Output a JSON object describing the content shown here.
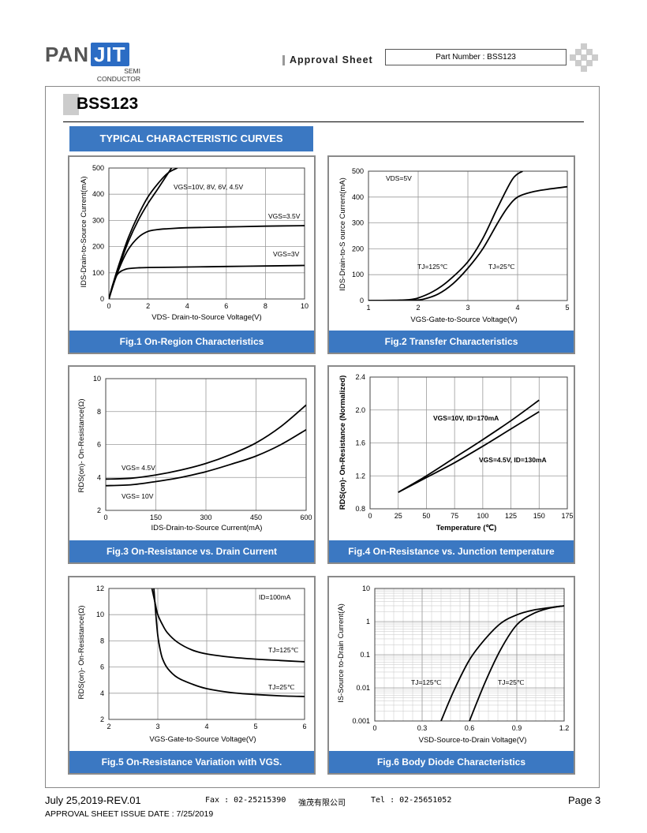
{
  "header": {
    "logo_main": "PAN",
    "logo_accent": "JIT",
    "logo_sub1": "SEMI",
    "logo_sub2": "CONDUCTOR",
    "approval_label": "Approval   Sheet",
    "part_number": "Part Number : BSS123"
  },
  "page_title": "BSS123",
  "section_title": "TYPICAL CHARACTERISTIC CURVES",
  "charts": [
    {
      "caption": "Fig.1 On-Region Characteristics",
      "chart_data": {
        "type": "line",
        "xlabel": "VDS- Drain-to-Source Voltage(V)",
        "ylabel": "IDS-Drain-to-Source Current(mA)",
        "xlim": [
          0,
          10
        ],
        "ylim": [
          0,
          500
        ],
        "x_ticks": [
          "0",
          "2",
          "4",
          "6",
          "8",
          "10"
        ],
        "y_ticks": [
          "0",
          "100",
          "200",
          "300",
          "400",
          "500"
        ],
        "annotations": [
          "VGS=10V, 8V, 6V, 4.5V",
          "VGS=3.5V",
          "VGS=3V"
        ],
        "series": [
          {
            "x": [
              0,
              0.3,
              0.6,
              1,
              1.5,
              2,
              2.5,
              3,
              3.5
            ],
            "y": [
              0,
              80,
              150,
              235,
              320,
              390,
              440,
              480,
              500
            ]
          },
          {
            "x": [
              0,
              0.3,
              0.6,
              1,
              1.5,
              2,
              2.5,
              3.2
            ],
            "y": [
              0,
              75,
              140,
              220,
              300,
              365,
              420,
              500
            ]
          },
          {
            "x": [
              0,
              0.3,
              0.6,
              1,
              1.5,
              2,
              2.5,
              3,
              4,
              6,
              8,
              10
            ],
            "y": [
              0,
              70,
              130,
              190,
              235,
              258,
              265,
              268,
              272,
              275,
              278,
              280
            ]
          },
          {
            "x": [
              0,
              0.2,
              0.4,
              0.6,
              0.8,
              1,
              1.5,
              2,
              4,
              6,
              8,
              10
            ],
            "y": [
              0,
              55,
              90,
              105,
              112,
              116,
              119,
              120,
              122,
              124,
              126,
              128
            ]
          }
        ]
      }
    },
    {
      "caption": "Fig.2 Transfer Characteristics",
      "chart_data": {
        "type": "line",
        "xlabel": "VGS-Gate-to-Source Voltage(V)",
        "ylabel": "IDS-Drain-to-S ource Current(mA)",
        "xlim": [
          1,
          5
        ],
        "ylim": [
          0,
          500
        ],
        "x_ticks": [
          "1",
          "2",
          "3",
          "4",
          "5"
        ],
        "y_ticks": [
          "0",
          "100",
          "200",
          "300",
          "400",
          "500"
        ],
        "annotations": [
          "VDS=5V",
          "TJ=125℃",
          "TJ=25℃"
        ],
        "series": [
          {
            "name": "TJ=125℃",
            "x": [
              1,
              1.5,
              1.8,
              2,
              2.3,
              2.6,
              3,
              3.3,
              3.6,
              3.9,
              4.1
            ],
            "y": [
              0,
              1,
              3,
              10,
              35,
              75,
              150,
              240,
              360,
              470,
              500
            ]
          },
          {
            "name": "TJ=25℃",
            "x": [
              1,
              1.5,
              1.9,
              2.1,
              2.4,
              2.7,
              3,
              3.3,
              3.6,
              3.8,
              4.0,
              4.3,
              4.6,
              5
            ],
            "y": [
              0,
              0,
              1,
              5,
              25,
              65,
              125,
              200,
              300,
              360,
              400,
              420,
              430,
              440
            ]
          }
        ]
      }
    },
    {
      "caption": "Fig.3 On-Resistance vs. Drain Current",
      "chart_data": {
        "type": "line",
        "xlabel": "IDS-Drain-to-Source Current(mA)",
        "ylabel": "RDS(on)- On-Resistance(Ω)",
        "xlim": [
          0,
          600
        ],
        "ylim": [
          2,
          10
        ],
        "x_ticks": [
          "0",
          "150",
          "300",
          "450",
          "600"
        ],
        "y_ticks": [
          "2",
          "4",
          "6",
          "8",
          "10"
        ],
        "annotations": [
          "VGS= 4.5V",
          "VGS= 10V"
        ],
        "series": [
          {
            "name": "VGS= 4.5V",
            "x": [
              0,
              75,
              150,
              225,
              300,
              375,
              450,
              525,
              600
            ],
            "y": [
              3.9,
              3.95,
              4.15,
              4.45,
              4.85,
              5.4,
              6.1,
              7.1,
              8.4
            ]
          },
          {
            "name": "VGS= 10V",
            "x": [
              0,
              75,
              150,
              225,
              300,
              375,
              450,
              525,
              600
            ],
            "y": [
              3.5,
              3.55,
              3.75,
              4.0,
              4.35,
              4.8,
              5.3,
              6.0,
              6.9
            ]
          }
        ]
      }
    },
    {
      "caption": "Fig.4 On-Resistance vs. Junction temperature",
      "chart_data": {
        "type": "line",
        "xlabel": "Temperature (℃)",
        "ylabel": "RDS(on)- On-Resistance (Normalized)",
        "xlim": [
          0,
          175
        ],
        "ylim": [
          0.8,
          2.4
        ],
        "x_ticks": [
          "0",
          "25",
          "50",
          "75",
          "100",
          "125",
          "150",
          "175"
        ],
        "y_ticks": [
          "0.8",
          "1.2",
          "1.6",
          "2.0",
          "2.4"
        ],
        "annotations": [
          "VGS=10V, ID=170mA",
          "VGS=4.5V, ID=130mA"
        ],
        "series": [
          {
            "name": "VGS=10V, ID=170mA",
            "x": [
              25,
              50,
              75,
              100,
              125,
              150
            ],
            "y": [
              1.0,
              1.2,
              1.42,
              1.64,
              1.87,
              2.12
            ]
          },
          {
            "name": "VGS=4.5V, ID=130mA",
            "x": [
              25,
              50,
              75,
              100,
              125,
              150
            ],
            "y": [
              1.0,
              1.18,
              1.36,
              1.56,
              1.77,
              1.98
            ]
          }
        ]
      }
    },
    {
      "caption": "Fig.5 On-Resistance Variation with VGS.",
      "chart_data": {
        "type": "line",
        "xlabel": "VGS-Gate-to-Source Voltage(V)",
        "ylabel": "RDS(on)- On-Resistance(Ω)",
        "xlim": [
          2,
          6
        ],
        "ylim": [
          2,
          12
        ],
        "x_ticks": [
          "2",
          "3",
          "4",
          "5",
          "6"
        ],
        "y_ticks": [
          "2",
          "4",
          "6",
          "8",
          "10",
          "12"
        ],
        "annotations": [
          "ID=100mA",
          "TJ=125℃",
          "TJ=25℃"
        ],
        "series": [
          {
            "name": "TJ=125℃",
            "x": [
              2.88,
              2.95,
              3.0,
              3.1,
              3.2,
              3.4,
              3.7,
              4,
              4.5,
              5,
              5.5,
              6
            ],
            "y": [
              12,
              10.8,
              10,
              9.2,
              8.6,
              7.9,
              7.3,
              7.0,
              6.75,
              6.6,
              6.5,
              6.4
            ]
          },
          {
            "name": "TJ=25℃",
            "x": [
              2.92,
              2.96,
              3.0,
              3.05,
              3.1,
              3.2,
              3.4,
              3.7,
              4,
              4.5,
              5,
              5.5,
              6
            ],
            "y": [
              12,
              10,
              8.4,
              7.3,
              6.6,
              5.9,
              5.2,
              4.7,
              4.35,
              4.05,
              3.9,
              3.8,
              3.75
            ]
          }
        ]
      }
    },
    {
      "caption": "Fig.6 Body Diode Characteristics",
      "chart_data": {
        "type": "line",
        "log_y": true,
        "xlabel": "VSD-Source-to-Drain Voltage(V)",
        "ylabel": "IS-Source  to-Drain Current(A)",
        "xlim": [
          0,
          1.2
        ],
        "ylim": [
          0.001,
          10
        ],
        "x_ticks": [
          "0",
          "0.3",
          "0.6",
          "0.9",
          "1.2"
        ],
        "y_ticks": [
          "0.001",
          "0.01",
          "0.1",
          "1",
          "10"
        ],
        "annotations": [
          "TJ=125℃",
          "TJ=25℃"
        ],
        "series": [
          {
            "name": "TJ=125℃",
            "x": [
              0.42,
              0.5,
              0.6,
              0.7,
              0.8,
              0.9,
              1.0,
              1.1,
              1.2
            ],
            "y": [
              0.001,
              0.008,
              0.07,
              0.3,
              0.9,
              1.6,
              2.2,
              2.6,
              3.0
            ]
          },
          {
            "name": "TJ=25℃",
            "x": [
              0.6,
              0.7,
              0.8,
              0.9,
              1.0,
              1.1,
              1.2
            ],
            "y": [
              0.001,
              0.015,
              0.15,
              0.8,
              1.7,
              2.5,
              3.0
            ]
          }
        ]
      }
    }
  ],
  "footer": {
    "date_rev": "July 25,2019-REV.01",
    "fax": "Fax : 02-25215390",
    "company": "強茂有限公司",
    "tel": "Tel : 02-25651052",
    "page": "Page 3",
    "issue_date": "APPROVAL SHEET ISSUE DATE : 7/25/2019"
  }
}
